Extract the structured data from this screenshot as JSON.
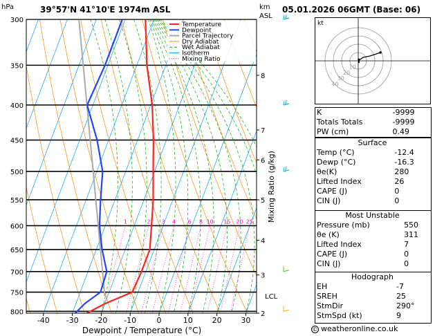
{
  "header": {
    "location": "39°57'N 41°10'E 1974m ASL",
    "datetime": "05.01.2026 06GMT (Base: 06)",
    "hpa_label": "hPa",
    "km_label": "km",
    "asl_label": "ASL"
  },
  "chart_data": {
    "type": "skew-t",
    "xlabel": "Dewpoint / Temperature (°C)",
    "ylabel": "hPa",
    "right_axis_label": "Mixing Ratio (g/kg)",
    "xlim": [
      -45,
      35
    ],
    "ylim": [
      300,
      805
    ],
    "pressure_ticks": [
      300,
      350,
      400,
      450,
      500,
      550,
      600,
      650,
      700,
      750,
      800
    ],
    "temp_ticks": [
      -40,
      -30,
      -20,
      -10,
      0,
      10,
      20,
      30
    ],
    "km_ticks": [
      {
        "km": "8",
        "p": 362
      },
      {
        "km": "7",
        "p": 435
      },
      {
        "km": "6",
        "p": 481
      },
      {
        "km": "5",
        "p": 550
      },
      {
        "km": "4",
        "p": 630
      },
      {
        "km": "3",
        "p": 708
      },
      {
        "km": "2",
        "p": 805
      }
    ],
    "lcl": {
      "label": "LCL",
      "p": 760
    },
    "mixing_ratio_labels": [
      "1",
      "2",
      "3",
      "4",
      "6",
      "8",
      "10",
      "15",
      "20",
      "25"
    ],
    "mixing_ratio_values": [
      1,
      2,
      3,
      4,
      6,
      8,
      10,
      15,
      20,
      25
    ],
    "legend": [
      "Temperature",
      "Dewpoint",
      "Parcel Trajectory",
      "Dry Adiabat",
      "Wet Adiabat",
      "Isotherm",
      "Mixing Ratio"
    ],
    "series": [
      {
        "name": "Temperature",
        "points": [
          [
            300,
            -43
          ],
          [
            350,
            -36.5
          ],
          [
            400,
            -29.5
          ],
          [
            450,
            -24.5
          ],
          [
            500,
            -20.5
          ],
          [
            550,
            -16.8
          ],
          [
            600,
            -14
          ],
          [
            650,
            -11.5
          ],
          [
            700,
            -11.5
          ],
          [
            750,
            -12
          ],
          [
            780,
            -20
          ],
          [
            805,
            -25
          ]
        ]
      },
      {
        "name": "Dewpoint",
        "points": [
          [
            300,
            -51
          ],
          [
            350,
            -51
          ],
          [
            400,
            -52
          ],
          [
            450,
            -44
          ],
          [
            500,
            -38
          ],
          [
            550,
            -35
          ],
          [
            600,
            -32
          ],
          [
            650,
            -28
          ],
          [
            700,
            -23.5
          ],
          [
            750,
            -23
          ],
          [
            780,
            -27
          ],
          [
            805,
            -29
          ]
        ]
      }
    ]
  },
  "colors": {
    "temperature": "#ff2222",
    "dewpoint": "#2244ff",
    "parcel": "#aaaaaa",
    "dry_adiabat": "#ff8800",
    "wet_adiabat": "#00aa00",
    "isotherm": "#00a0ff",
    "mixing_ratio": "#ff00cc",
    "wind_barb": "#00cc44"
  },
  "hodograph": {
    "label": "kt",
    "ring_labels": [
      "10",
      "20",
      "30",
      "40"
    ]
  },
  "indices": {
    "k_label": "K",
    "k_value": "-9999",
    "tt_label": "Totals Totals",
    "tt_value": "-9999",
    "pw_label": "PW (cm)",
    "pw_value": "0.49"
  },
  "surface": {
    "title": "Surface",
    "temp_label": "Temp (°C)",
    "temp_value": "-12.4",
    "dewp_label": "Dewp (°C)",
    "dewp_value": "-16.3",
    "theta_label": "θe(K)",
    "theta_value": "280",
    "li_label": "Lifted Index",
    "li_value": "26",
    "cape_label": "CAPE (J)",
    "cape_value": "0",
    "cin_label": "CIN (J)",
    "cin_value": "0"
  },
  "most_unstable": {
    "title": "Most Unstable",
    "pressure_label": "Pressure (mb)",
    "pressure_value": "550",
    "theta_label": "θe (K)",
    "theta_value": "311",
    "li_label": "Lifted Index",
    "li_value": "7",
    "cape_label": "CAPE (J)",
    "cape_value": "0",
    "cin_label": "CIN (J)",
    "cin_value": "0"
  },
  "hodograph_stats": {
    "title": "Hodograph",
    "eh_label": "EH",
    "eh_value": "-7",
    "sreh_label": "SREH",
    "sreh_value": "25",
    "stmdir_label": "StmDir",
    "stmdir_value": "290°",
    "stmspd_label": "StmSpd (kt)",
    "stmspd_value": "9"
  },
  "footer": {
    "copyright_symbol": "©",
    "text": "weatheronline.co.uk"
  }
}
